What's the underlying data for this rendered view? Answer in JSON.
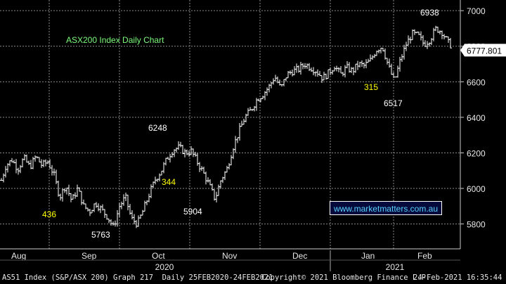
{
  "chart_data": {
    "type": "ohlc",
    "title": "ASX200 Index Daily Chart",
    "y_axis": {
      "ylim": [
        5660,
        7060
      ],
      "ticks": [
        5800,
        6000,
        6200,
        6400,
        6600,
        6800,
        7000
      ],
      "side": "right"
    },
    "x_axis": {
      "months": [
        "Aug",
        "Sep",
        "Oct",
        "Nov",
        "Dec",
        "Jan",
        "Feb"
      ],
      "years": [
        "2020",
        "2021"
      ]
    },
    "last_price": "6777.801",
    "grid": true,
    "annotations": [
      {
        "text": "6938",
        "color": "#ffffff"
      },
      {
        "text": "6248",
        "color": "#ffffff"
      },
      {
        "text": "5763",
        "color": "#ffffff"
      },
      {
        "text": "5904",
        "color": "#ffffff"
      },
      {
        "text": "6517",
        "color": "#ffffff"
      },
      {
        "text": "436",
        "color": "#ffff00"
      },
      {
        "text": "344",
        "color": "#ffff00"
      },
      {
        "text": "315",
        "color": "#ffff00"
      }
    ],
    "series": [
      {
        "trend": [
          [
            0,
            6020
          ],
          [
            2,
            6130
          ],
          [
            4,
            6160
          ],
          [
            6,
            6110
          ],
          [
            8,
            6170
          ],
          [
            10,
            6120
          ],
          [
            12,
            6180
          ],
          [
            14,
            6130
          ],
          [
            16,
            6150
          ],
          [
            18,
            6080
          ],
          [
            20,
            5950
          ],
          [
            22,
            6020
          ],
          [
            24,
            5930
          ],
          [
            26,
            6000
          ],
          [
            28,
            5900
          ],
          [
            30,
            5870
          ],
          [
            32,
            5920
          ],
          [
            34,
            5880
          ],
          [
            36,
            5840
          ],
          [
            38,
            5780
          ],
          [
            40,
            5900
          ],
          [
            42,
            5950
          ],
          [
            44,
            5830
          ],
          [
            46,
            5800
          ],
          [
            48,
            5880
          ],
          [
            50,
            5970
          ],
          [
            52,
            6050
          ],
          [
            54,
            6100
          ],
          [
            56,
            6170
          ],
          [
            58,
            6220
          ],
          [
            60,
            6230
          ],
          [
            62,
            6200
          ],
          [
            64,
            6210
          ],
          [
            66,
            6150
          ],
          [
            68,
            6090
          ],
          [
            70,
            6020
          ],
          [
            72,
            5940
          ],
          [
            74,
            6050
          ],
          [
            76,
            6110
          ],
          [
            78,
            6230
          ],
          [
            80,
            6320
          ],
          [
            82,
            6400
          ],
          [
            84,
            6440
          ],
          [
            86,
            6500
          ],
          [
            88,
            6530
          ],
          [
            90,
            6570
          ],
          [
            92,
            6630
          ],
          [
            94,
            6560
          ],
          [
            96,
            6640
          ],
          [
            98,
            6660
          ],
          [
            100,
            6670
          ],
          [
            102,
            6700
          ],
          [
            104,
            6680
          ],
          [
            106,
            6660
          ],
          [
            108,
            6620
          ],
          [
            110,
            6650
          ],
          [
            112,
            6690
          ],
          [
            114,
            6640
          ],
          [
            116,
            6680
          ],
          [
            118,
            6660
          ],
          [
            120,
            6700
          ],
          [
            122,
            6690
          ],
          [
            124,
            6720
          ],
          [
            126,
            6780
          ],
          [
            128,
            6800
          ],
          [
            130,
            6690
          ],
          [
            132,
            6600
          ],
          [
            134,
            6720
          ],
          [
            136,
            6810
          ],
          [
            138,
            6870
          ],
          [
            140,
            6860
          ],
          [
            142,
            6810
          ],
          [
            144,
            6840
          ],
          [
            146,
            6900
          ],
          [
            148,
            6880
          ],
          [
            150,
            6820
          ],
          [
            152,
            6790
          ]
        ]
      }
    ]
  },
  "watermark": "www.marketmatters.com.au",
  "footer": {
    "left": "AS51 Index (S&P/ASX 200) Graph 217  Daily 25FEB2020-24FEB2021",
    "center": "Copyright© 2021 Bloomberg Finance L.P.",
    "right": "24-Feb-2021 16:35:44"
  }
}
